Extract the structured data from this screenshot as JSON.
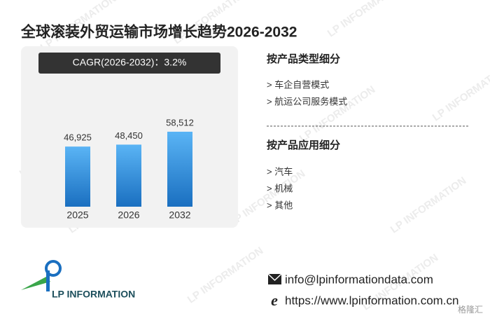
{
  "title": "全球滚装外贸运输市场增长趋势2026-2032",
  "cagr": "CAGR(2026-2032)：3.2%",
  "chart_data": {
    "type": "bar",
    "categories": [
      "2025",
      "2026",
      "2032"
    ],
    "values": [
      46925,
      48450,
      58512
    ],
    "value_labels": [
      "46,925",
      "48,450",
      "58,512"
    ],
    "color": "#2f8fe0"
  },
  "segments": [
    {
      "heading": "按产品类型细分",
      "items": [
        "> 车企自营模式",
        "> 航运公司服务模式"
      ]
    },
    {
      "heading": "按产品应用细分",
      "items": [
        "> 汽车",
        "> 机械",
        "> 其他"
      ]
    }
  ],
  "contact": {
    "email": "info@lpinformationdata.com",
    "website": "https://www.lpinformation.com.cn"
  },
  "logo": "LP INFORMATION",
  "watermark": "LP INFORMATION",
  "badge": "格隆汇"
}
